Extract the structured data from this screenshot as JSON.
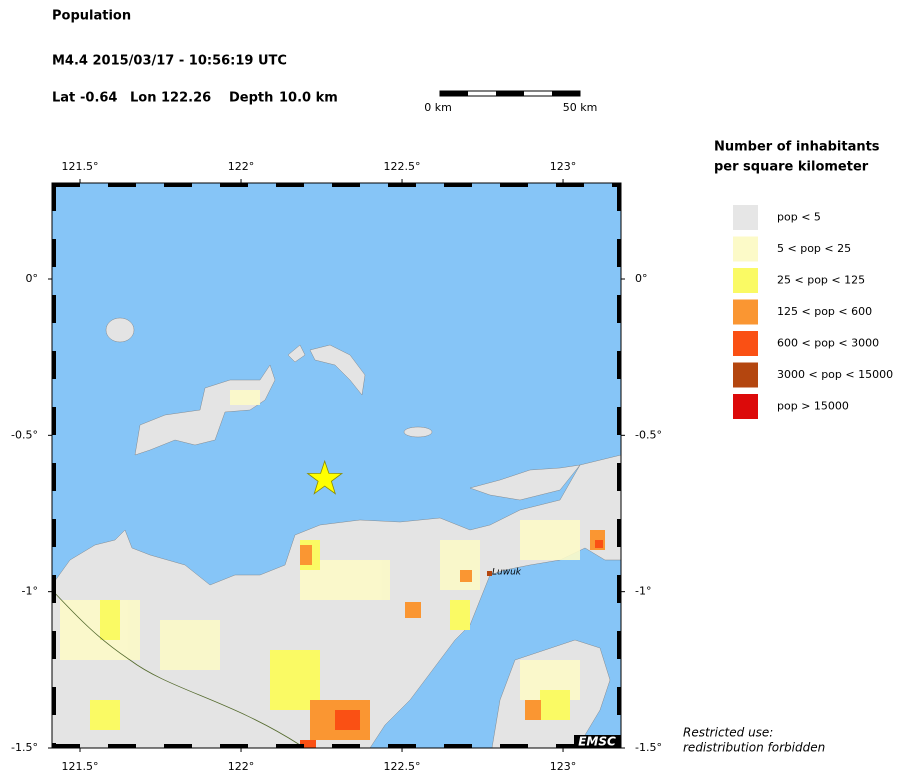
{
  "header": {
    "title": "Population",
    "event": "M4.4  2015/03/17 - 10:56:19 UTC",
    "lat": {
      "label": "Lat",
      "value": -0.64
    },
    "lon": {
      "label": "Lon",
      "value": 122.26
    },
    "depth": {
      "label": "Depth",
      "value": "10.0 km"
    }
  },
  "scale_bar": {
    "start": "0 km",
    "end": "50 km"
  },
  "map": {
    "xlim": [
      121.413,
      123.18
    ],
    "ylim": [
      -1.5,
      0.307
    ],
    "xticks": [
      {
        "value": 121.5,
        "label": "121.5°"
      },
      {
        "value": 122,
        "label": "122°"
      },
      {
        "value": 122.5,
        "label": "122.5°"
      },
      {
        "value": 123,
        "label": "123°"
      }
    ],
    "yticks": [
      {
        "value": 0,
        "label": "0°"
      },
      {
        "value": -0.5,
        "label": "-0.5°"
      },
      {
        "value": -1,
        "label": "-1°"
      },
      {
        "value": -1.5,
        "label": "-1.5°"
      }
    ],
    "city": "Luwuk",
    "logo": "EMSC"
  },
  "legend": {
    "title": [
      "Number of inhabitants",
      "per square kilometer"
    ],
    "items": [
      {
        "label": "pop < 5",
        "color": "#e6e6e6"
      },
      {
        "label": "5 < pop < 25",
        "color": "#fcfac8"
      },
      {
        "label": "25 < pop < 125",
        "color": "#fafa64"
      },
      {
        "label": "125 < pop < 600",
        "color": "#fa9632"
      },
      {
        "label": "600 < pop < 3000",
        "color": "#fa5014"
      },
      {
        "label": "3000 < pop < 15000",
        "color": "#b4460f"
      },
      {
        "label": "pop > 15000",
        "color": "#dc0a0a"
      }
    ]
  },
  "footer": [
    "Restricted use:",
    "redistribution forbidden"
  ]
}
